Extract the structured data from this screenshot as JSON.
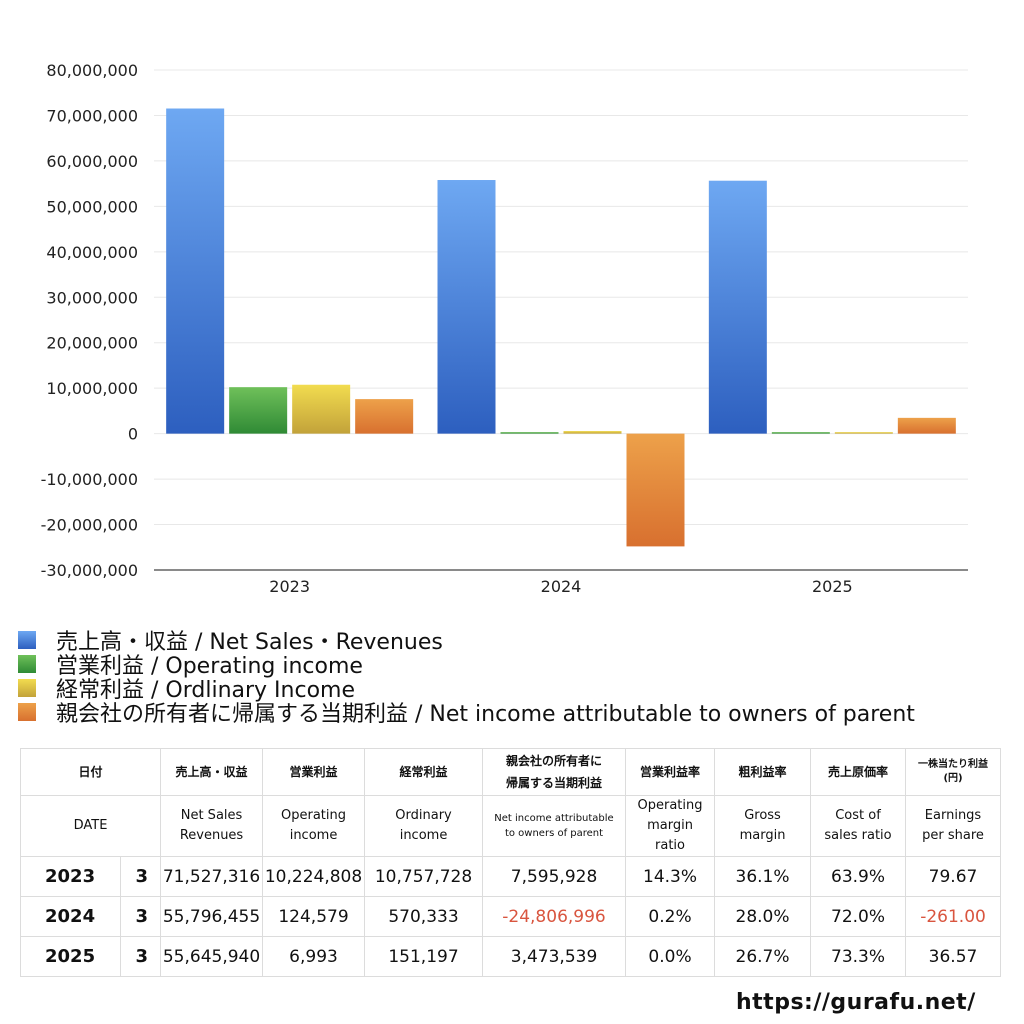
{
  "chart_data": {
    "type": "bar",
    "categories": [
      "2023",
      "2024",
      "2025"
    ],
    "series": [
      {
        "name": "売上高・収益 / Net Sales・Revenues",
        "values": [
          71527316,
          55796455,
          55645940
        ],
        "color_top": "#6ea8f2",
        "color_bottom": "#2d5fbf"
      },
      {
        "name": "営業利益 / Operating income",
        "values": [
          10224808,
          124579,
          6993
        ],
        "color_top": "#6fc05a",
        "color_bottom": "#2f8a35"
      },
      {
        "name": "経常利益 / Ordlinary Income",
        "values": [
          10757728,
          570333,
          151197
        ],
        "color_top": "#f2dc4f",
        "color_bottom": "#c2a23a"
      },
      {
        "name": "親会社の所有者に帰属する当期利益 / Net income attributable to owners of parent",
        "values": [
          7595928,
          -24806996,
          3473539
        ],
        "color_top": "#eda14a",
        "color_bottom": "#d8702f"
      }
    ],
    "ylim": [
      -30000000,
      80000000
    ],
    "yticks": [
      80000000,
      70000000,
      60000000,
      50000000,
      40000000,
      30000000,
      20000000,
      10000000,
      0,
      -10000000,
      -20000000,
      -30000000
    ],
    "ytick_labels": [
      "80,000,000",
      "70,000,000",
      "60,000,000",
      "50,000,000",
      "40,000,000",
      "30,000,000",
      "20,000,000",
      "10,000,000",
      "0",
      "-10,000,000",
      "-20,000,000",
      "-30,000,000"
    ],
    "grid": true,
    "legend_placement": "bottom"
  },
  "table": {
    "header_jp": {
      "date": "日付",
      "sales": "売上高・収益",
      "op": "営業利益",
      "ord": "経常利益",
      "net_line1": "親会社の所有者に",
      "net_line2": "帰属する当期利益",
      "opm": "営業利益率",
      "gm": "粗利益率",
      "cos": "売上原価率",
      "eps_line1": "一株当たり利益",
      "eps_line2": "(円)"
    },
    "header_en": {
      "date": "DATE",
      "sales_line1": "Net Sales",
      "sales_line2": "Revenues",
      "op_line1": "Operating",
      "op_line2": "income",
      "ord_line1": "Ordinary",
      "ord_line2": "income",
      "net_line1": "Net income attributable",
      "net_line2": "to owners of parent",
      "opm_line1": "Operating",
      "opm_line2": "margin",
      "opm_line3": "ratio",
      "gm_line1": "Gross",
      "gm_line2": "margin",
      "cos_line1": "Cost of",
      "cos_line2": "sales ratio",
      "eps_line1": "Earnings",
      "eps_line2": "per share"
    },
    "rows": [
      {
        "year": "2023",
        "month": "3",
        "sales": "71,527,316",
        "op": "10,224,808",
        "ord": "10,757,728",
        "net": "7,595,928",
        "opm": "14.3%",
        "gm": "36.1%",
        "cos": "63.9%",
        "eps": "79.67"
      },
      {
        "year": "2024",
        "month": "3",
        "sales": "55,796,455",
        "op": "124,579",
        "ord": "570,333",
        "net": "-24,806,996",
        "opm": "0.2%",
        "gm": "28.0%",
        "cos": "72.0%",
        "eps": "-261.00"
      },
      {
        "year": "2025",
        "month": "3",
        "sales": "55,645,940",
        "op": "6,993",
        "ord": "151,197",
        "net": "3,473,539",
        "opm": "0.0%",
        "gm": "26.7%",
        "cos": "73.3%",
        "eps": "36.57"
      }
    ]
  },
  "footer": {
    "url": "https://gurafu.net/"
  }
}
